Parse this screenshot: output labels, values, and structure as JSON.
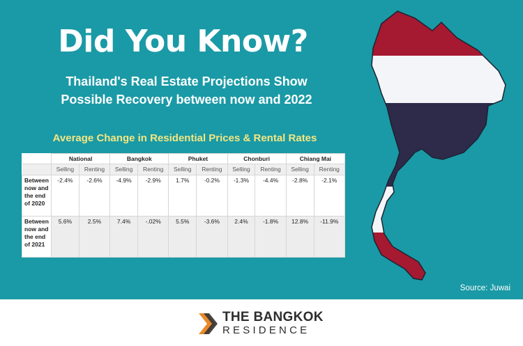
{
  "banner": {
    "headline": "Did You Know?",
    "subtitle_line1": "Thailand's Real Estate Projections Show",
    "subtitle_line2": "Possible Recovery between now and 2022",
    "table_title": "Average Change in Residential Prices & Rental Rates",
    "source": "Source: Juwai"
  },
  "table": {
    "regions": [
      "National",
      "Bangkok",
      "Phuket",
      "Chonburi",
      "Chiang Mai"
    ],
    "subheaders": [
      "Selling",
      "Renting"
    ],
    "rows": [
      {
        "label_lines": [
          "Between",
          "now and",
          "the end",
          "of 2020"
        ],
        "values": [
          "-2.4%",
          "-2.6%",
          "-4.9%",
          "-2.9%",
          "1.7%",
          "-0.2%",
          "-1.3%",
          "-4.4%",
          "-2.8%",
          "-2.1%"
        ]
      },
      {
        "label_lines": [
          "Between",
          "now and",
          "the end",
          "of 2021"
        ],
        "values": [
          "5.6%",
          "2.5%",
          "7.4%",
          "-.02%",
          "5.5%",
          "-3.6%",
          "2.4%",
          "-1.8%",
          "12.8%",
          "-11.9%"
        ]
      }
    ]
  },
  "map": {
    "icon": "thailand-flag-map-icon",
    "colors": {
      "red": "#a51931",
      "white": "#f4f5f8",
      "blue": "#2d2a4a",
      "outline": "#1b2433"
    }
  },
  "footer": {
    "logo_icon": "the-bangkok-residence-logo-icon",
    "brand_line1": "THE BANGKOK",
    "brand_line2": "RESIDENCE",
    "logo_colors": {
      "orange": "#e8892b",
      "dark": "#333333"
    }
  }
}
